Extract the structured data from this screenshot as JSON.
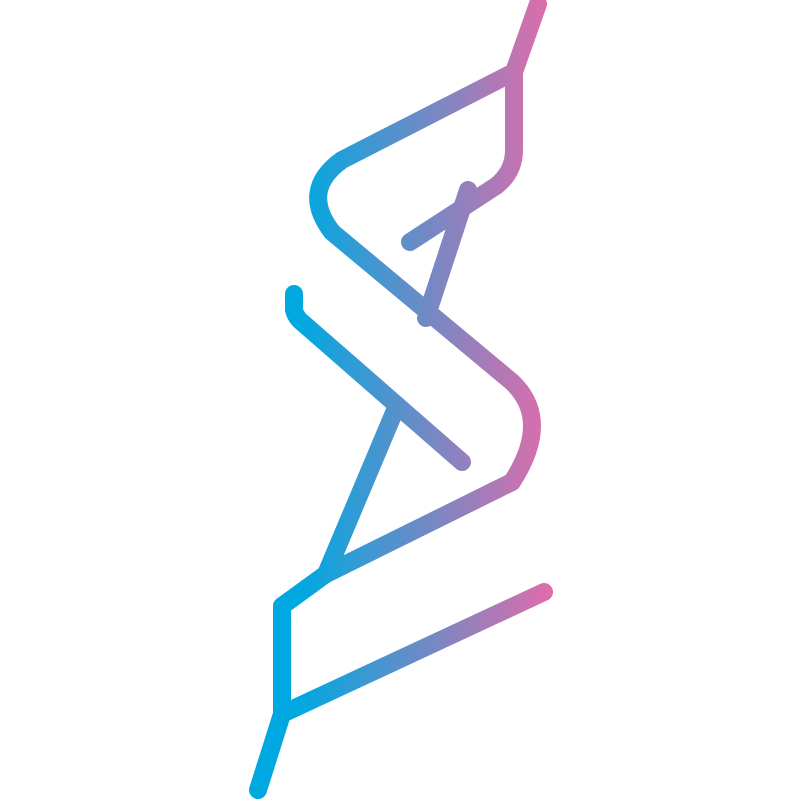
{
  "logo": {
    "kind": "abstract monogram",
    "gradient": {
      "start_color": "#00a8e1",
      "end_color": "#e86aa8"
    },
    "background_color": "#ffffff"
  }
}
